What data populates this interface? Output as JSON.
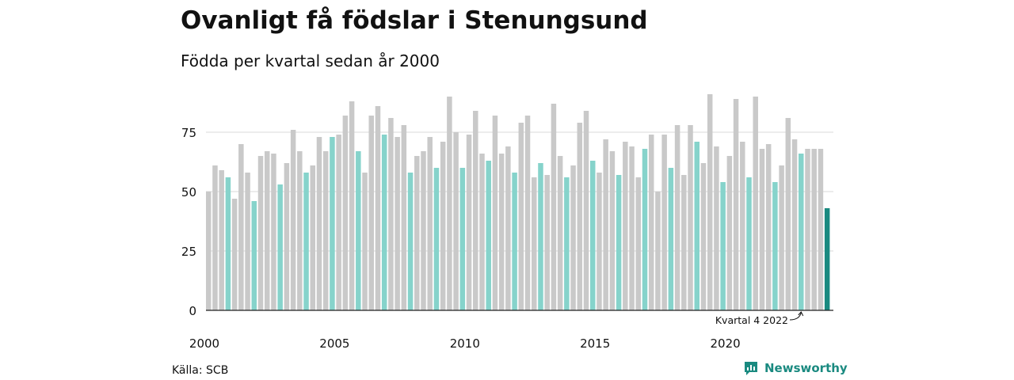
{
  "header": {
    "title": "Ovanligt få födslar i Stenungsund",
    "subtitle": "Födda per kvartal sedan år 2000"
  },
  "footer": {
    "source": "Källa: SCB",
    "brand": "Newsworthy"
  },
  "colors": {
    "default_bar": "#c9c9c9",
    "quarter4_bar": "#86d3cb",
    "latest_bar": "#1a8a80",
    "grid": "#d9d9d9",
    "baseline": "#222222",
    "brand": "#1a8a80"
  },
  "chart_data": {
    "type": "bar",
    "title": "Ovanligt få födslar i Stenungsund",
    "subtitle": "Födda per kvartal sedan år 2000",
    "start_year": 2000,
    "start_quarter": 1,
    "values": [
      50,
      61,
      59,
      56,
      47,
      70,
      58,
      46,
      65,
      67,
      66,
      53,
      62,
      76,
      67,
      58,
      61,
      73,
      67,
      73,
      74,
      82,
      88,
      67,
      58,
      82,
      86,
      74,
      81,
      73,
      78,
      58,
      65,
      67,
      73,
      60,
      71,
      90,
      75,
      60,
      74,
      84,
      66,
      63,
      82,
      66,
      69,
      58,
      79,
      82,
      56,
      62,
      57,
      87,
      65,
      56,
      61,
      79,
      84,
      63,
      58,
      72,
      67,
      57,
      71,
      69,
      56,
      68,
      74,
      50,
      74,
      60,
      78,
      57,
      78,
      71,
      62,
      91,
      69,
      54,
      65,
      89,
      71,
      56,
      90,
      68,
      70,
      54,
      61,
      81,
      72,
      66,
      68,
      68,
      68,
      43
    ],
    "ylim": [
      0,
      95
    ],
    "yticks": [
      0,
      25,
      50,
      75
    ],
    "xtick_labels": [
      "2000",
      "2005",
      "2010",
      "2015",
      "2020"
    ],
    "highlight": "kvartal 4 varje år",
    "annotation": {
      "text": "Kvartal 4 2022",
      "target_year": 2022,
      "target_quarter": 4
    },
    "grid": true,
    "legend": "none"
  }
}
